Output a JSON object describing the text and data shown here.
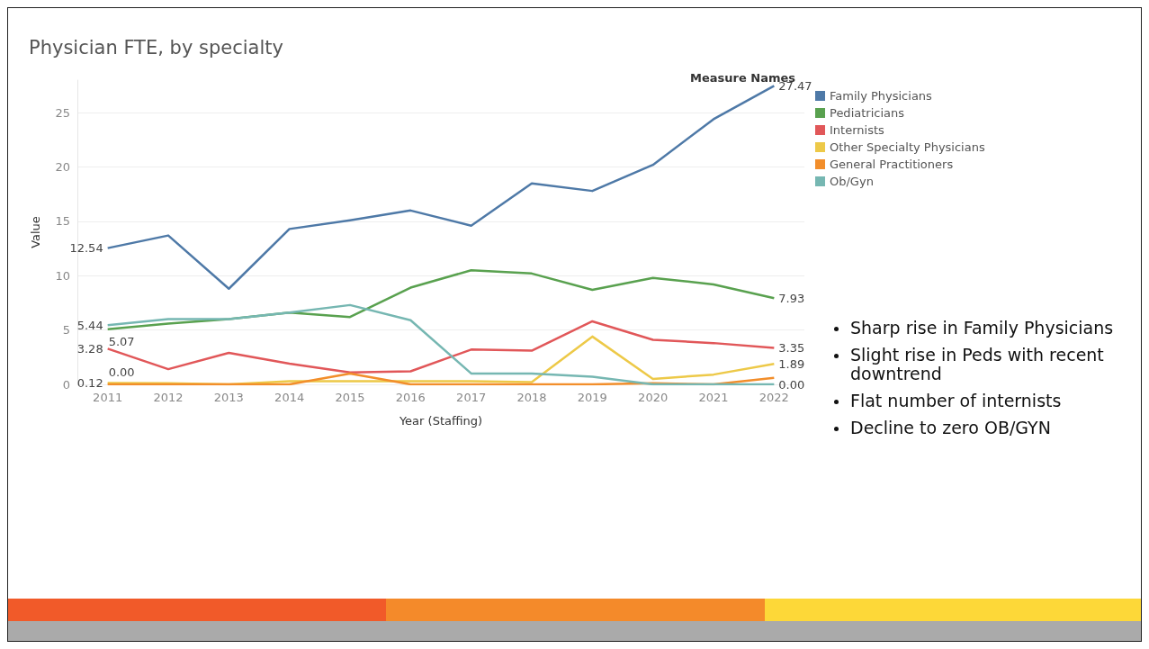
{
  "chart_data": {
    "type": "line",
    "title": "Physician FTE, by specialty",
    "xlabel": "Year (Staffing)",
    "ylabel": "Value",
    "legend_title": "Measure Names",
    "legend": "top right",
    "grid": "y",
    "marker": "none",
    "line_style": "solid",
    "categories": [
      "2011",
      "2012",
      "2013",
      "2014",
      "2015",
      "2016",
      "2017",
      "2018",
      "2019",
      "2020",
      "2021",
      "2022"
    ],
    "ylim": [
      0,
      28
    ],
    "yticks": [
      0,
      5,
      10,
      15,
      20,
      25
    ],
    "series": [
      {
        "name": "Family Physicians",
        "color": "#4e79a7",
        "values": [
          12.54,
          13.7,
          8.8,
          14.3,
          15.1,
          16.0,
          14.6,
          18.5,
          17.8,
          20.2,
          24.4,
          27.47
        ],
        "value_labels": [
          "12.54",
          null,
          null,
          null,
          null,
          null,
          null,
          null,
          null,
          null,
          null,
          "27.47"
        ]
      },
      {
        "name": "Pediatricians",
        "color": "#59a14f",
        "values": [
          5.07,
          5.6,
          6.0,
          6.6,
          6.2,
          8.9,
          10.5,
          10.2,
          8.7,
          9.8,
          9.2,
          7.93
        ],
        "value_labels": [
          "5.07",
          null,
          null,
          null,
          null,
          null,
          null,
          null,
          null,
          null,
          null,
          "7.93"
        ]
      },
      {
        "name": "Internists",
        "color": "#e15759",
        "values": [
          3.28,
          1.4,
          2.9,
          1.9,
          1.1,
          1.2,
          3.2,
          3.1,
          5.8,
          4.1,
          3.8,
          3.35
        ],
        "value_labels": [
          "3.28",
          null,
          null,
          null,
          null,
          null,
          null,
          null,
          null,
          null,
          null,
          "3.35"
        ]
      },
      {
        "name": "Other Specialty Physicians",
        "color": "#edc948",
        "values": [
          0.12,
          0.1,
          0,
          0.3,
          0.3,
          0.3,
          0.3,
          0.2,
          4.4,
          0.5,
          0.9,
          1.89
        ],
        "value_labels": [
          "0.12",
          null,
          null,
          null,
          null,
          null,
          null,
          null,
          null,
          null,
          null,
          "1.89"
        ]
      },
      {
        "name": "General Practitioners",
        "color": "#f28e2b",
        "values": [
          0.0,
          0,
          0,
          0,
          1.0,
          0,
          0,
          0,
          0,
          0.1,
          0,
          0.6
        ],
        "value_labels": [
          "0.00",
          null,
          null,
          null,
          null,
          null,
          null,
          null,
          null,
          null,
          null,
          null
        ]
      },
      {
        "name": "Ob/Gyn",
        "color": "#76b7b2",
        "values": [
          5.44,
          6.0,
          6.0,
          6.6,
          7.3,
          5.9,
          1.0,
          1.0,
          0.7,
          0,
          0,
          0.0
        ],
        "value_labels": [
          "5.44",
          null,
          null,
          null,
          null,
          null,
          null,
          null,
          null,
          null,
          null,
          "0.00"
        ]
      }
    ],
    "annotations": [
      "Sharp rise in Family Physicians",
      "Slight rise in Peds with recent downtrend",
      "Flat number of internists",
      "Decline to zero OB/GYN"
    ]
  }
}
